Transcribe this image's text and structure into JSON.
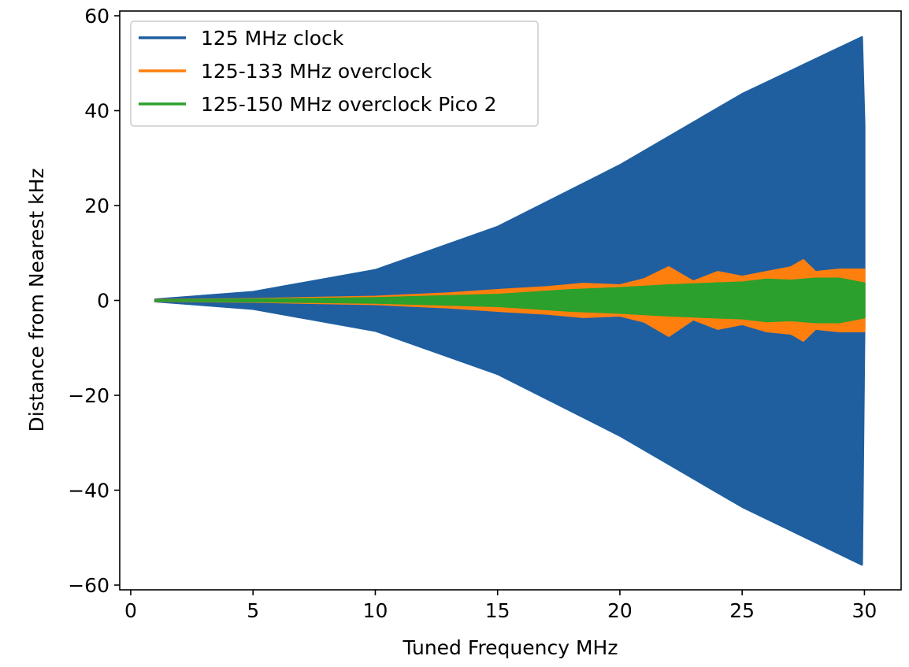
{
  "chart_data": {
    "type": "line",
    "title": "",
    "xlabel": "Tuned Frequency MHz",
    "ylabel": "Distance from Nearest kHz",
    "xlim": [
      -0.45,
      31.5
    ],
    "ylim": [
      -61,
      61
    ],
    "xticks": [
      0,
      5,
      10,
      15,
      20,
      25,
      30
    ],
    "yticks": [
      -60,
      -40,
      -20,
      0,
      20,
      40,
      60
    ],
    "x_tick_labels": [
      "0",
      "5",
      "10",
      "15",
      "20",
      "25",
      "30"
    ],
    "y_tick_labels": [
      "−60",
      "−40",
      "−20",
      "0",
      "20",
      "40",
      "60"
    ],
    "grid": false,
    "legend_position": "top-left",
    "series": [
      {
        "name": "125 MHz clock",
        "color": "#1f5fa0",
        "x": [
          1,
          5,
          10,
          15,
          20,
          25,
          29.9,
          30
        ],
        "upper": [
          0.2,
          1.8,
          6.4,
          15.5,
          28.5,
          43.5,
          55.5,
          37
        ],
        "lower": [
          -0.2,
          -1.8,
          -6.4,
          -15.5,
          -28.5,
          -43.5,
          -55.7,
          -5
        ]
      },
      {
        "name": "125-133 MHz overclock",
        "color": "#ff7f0e",
        "x": [
          1,
          5,
          10,
          13,
          15,
          17,
          18.5,
          20,
          21,
          22,
          23,
          24,
          25,
          26,
          27,
          27.5,
          28,
          29,
          30
        ],
        "upper": [
          0.1,
          0.3,
          0.8,
          1.5,
          2.2,
          2.8,
          3.5,
          3.2,
          4.5,
          7,
          4,
          6,
          5,
          6,
          7,
          8.5,
          6,
          6.5,
          6.5
        ],
        "lower": [
          -0.1,
          -0.3,
          -0.8,
          -1.5,
          -2.2,
          -2.8,
          -3.5,
          -3.2,
          -4.5,
          -7.5,
          -4,
          -6,
          -5,
          -6.5,
          -7,
          -8.5,
          -6,
          -6.5,
          -6.5
        ]
      },
      {
        "name": "125-150 MHz overclock Pico 2",
        "color": "#2ca02c",
        "x": [
          1,
          5,
          10,
          15,
          18,
          20,
          22,
          24,
          25,
          26,
          27,
          28,
          29,
          30
        ],
        "upper": [
          0.05,
          0.2,
          0.5,
          1.2,
          2.2,
          2.6,
          3.2,
          3.6,
          3.8,
          4.4,
          4.2,
          4.6,
          4.6,
          3.6
        ],
        "lower": [
          -0.05,
          -0.2,
          -0.5,
          -1.2,
          -2.2,
          -2.6,
          -3.2,
          -3.6,
          -3.8,
          -4.4,
          -4.2,
          -4.6,
          -4.6,
          -3.6
        ]
      }
    ]
  }
}
